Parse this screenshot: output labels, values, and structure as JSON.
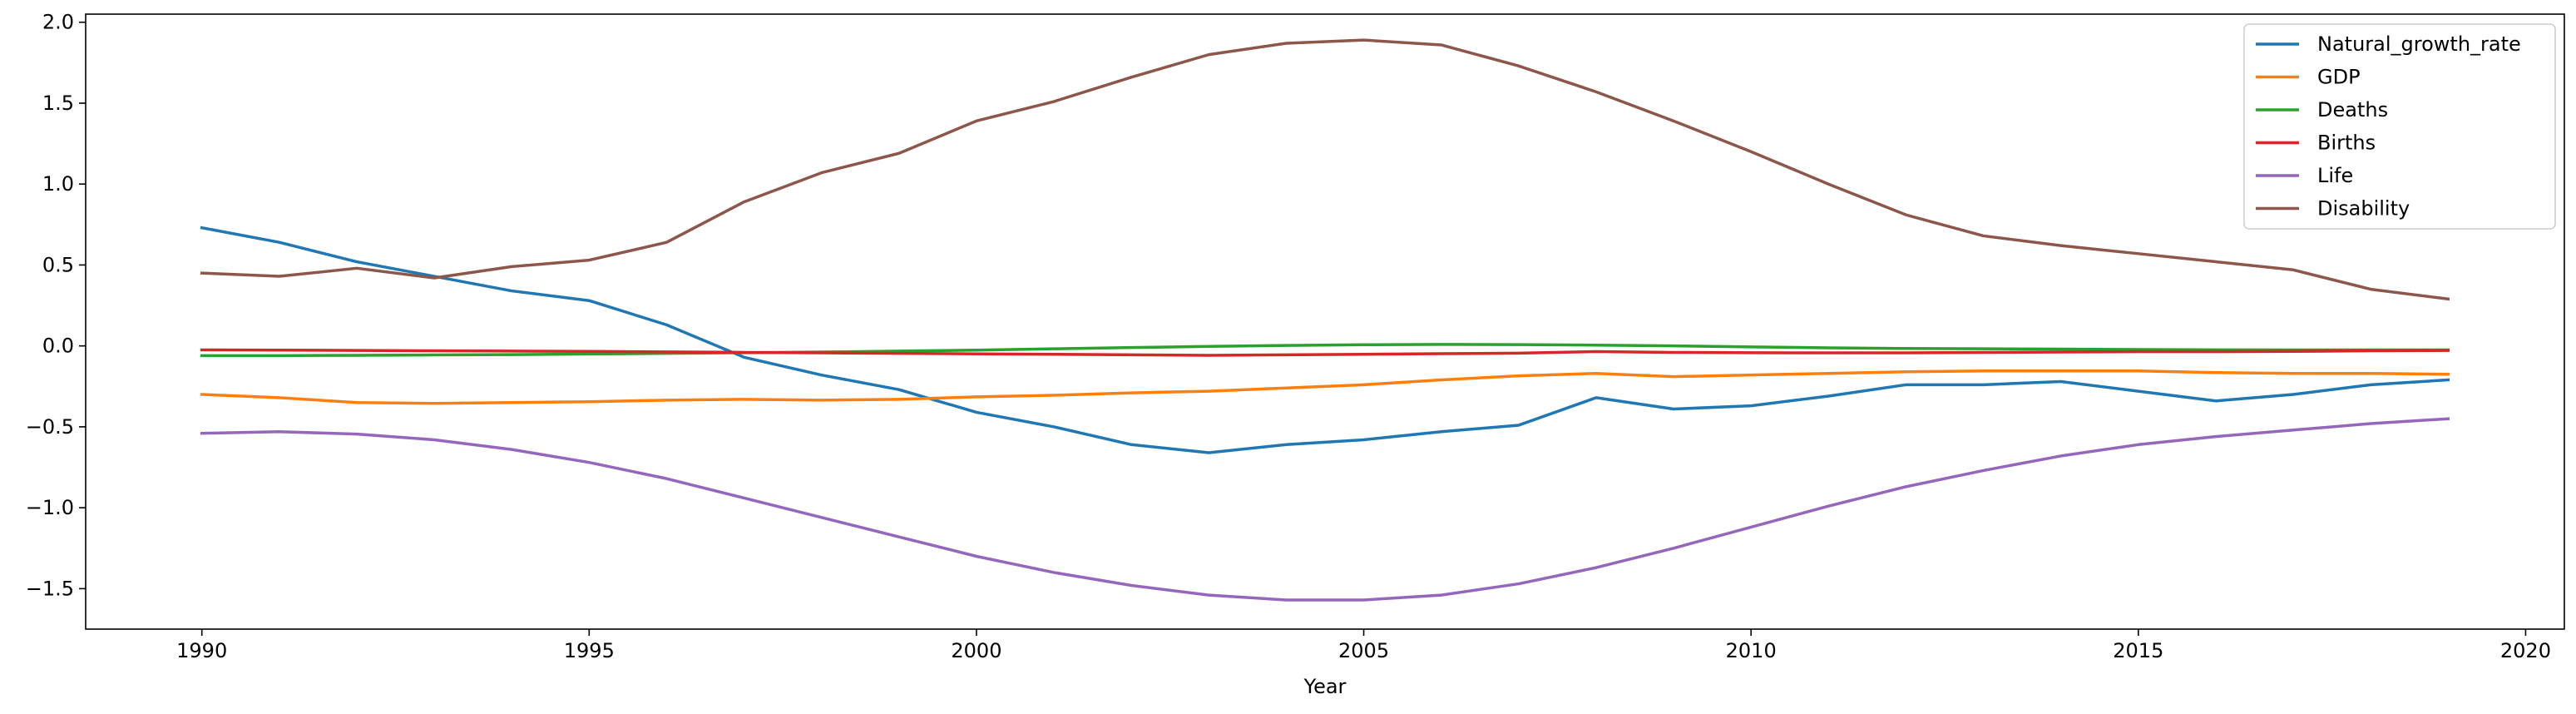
{
  "chart_data": {
    "type": "line",
    "xlabel": "Year",
    "ylabel": "",
    "xlim": [
      1988.5,
      2020.5
    ],
    "ylim": [
      -1.75,
      2.05
    ],
    "xticks": [
      1990,
      1995,
      2000,
      2005,
      2010,
      2015,
      2020
    ],
    "yticks": [
      -1.5,
      -1.0,
      -0.5,
      0.0,
      0.5,
      1.0,
      1.5,
      2.0
    ],
    "ytick_labels": [
      "−1.5",
      "−1.0",
      "−0.5",
      "0.0",
      "0.5",
      "1.0",
      "1.5",
      "2.0"
    ],
    "grid": false,
    "legend_position": "top-right",
    "x": [
      1990,
      1991,
      1992,
      1993,
      1994,
      1995,
      1996,
      1997,
      1998,
      1999,
      2000,
      2001,
      2002,
      2003,
      2004,
      2005,
      2006,
      2007,
      2008,
      2009,
      2010,
      2011,
      2012,
      2013,
      2014,
      2015,
      2016,
      2017,
      2018,
      2019
    ],
    "series": [
      {
        "name": "Natural_growth_rate",
        "color": "#1f77b4",
        "values": [
          0.73,
          0.64,
          0.52,
          0.43,
          0.34,
          0.28,
          0.13,
          -0.07,
          -0.18,
          -0.27,
          -0.41,
          -0.5,
          -0.61,
          -0.66,
          -0.61,
          -0.58,
          -0.53,
          -0.49,
          -0.32,
          -0.39,
          -0.37,
          -0.31,
          -0.24,
          -0.24,
          -0.22,
          -0.28,
          -0.34,
          -0.3,
          -0.24,
          -0.21
        ]
      },
      {
        "name": "GDP",
        "color": "#ff7f0e",
        "values": [
          -0.3,
          -0.32,
          -0.35,
          -0.355,
          -0.35,
          -0.345,
          -0.335,
          -0.33,
          -0.335,
          -0.33,
          -0.315,
          -0.305,
          -0.29,
          -0.28,
          -0.26,
          -0.24,
          -0.21,
          -0.185,
          -0.17,
          -0.19,
          -0.18,
          -0.17,
          -0.16,
          -0.155,
          -0.155,
          -0.155,
          -0.165,
          -0.17,
          -0.17,
          -0.175
        ]
      },
      {
        "name": "Deaths",
        "color": "#2ca02c",
        "values": [
          -0.06,
          -0.06,
          -0.058,
          -0.056,
          -0.054,
          -0.05,
          -0.046,
          -0.042,
          -0.038,
          -0.032,
          -0.026,
          -0.018,
          -0.01,
          -0.003,
          0.003,
          0.007,
          0.009,
          0.008,
          0.005,
          0.0,
          -0.006,
          -0.012,
          -0.016,
          -0.018,
          -0.02,
          -0.022,
          -0.024,
          -0.025,
          -0.025,
          -0.025
        ]
      },
      {
        "name": "Births",
        "color": "#d62728",
        "values": [
          -0.025,
          -0.026,
          -0.028,
          -0.03,
          -0.032,
          -0.034,
          -0.037,
          -0.04,
          -0.043,
          -0.046,
          -0.049,
          -0.052,
          -0.055,
          -0.058,
          -0.055,
          -0.052,
          -0.048,
          -0.045,
          -0.035,
          -0.04,
          -0.042,
          -0.043,
          -0.043,
          -0.04,
          -0.038,
          -0.036,
          -0.036,
          -0.034,
          -0.03,
          -0.028
        ]
      },
      {
        "name": "Life",
        "color": "#9467bd",
        "values": [
          -0.54,
          -0.53,
          -0.545,
          -0.58,
          -0.64,
          -0.72,
          -0.82,
          -0.94,
          -1.06,
          -1.18,
          -1.3,
          -1.4,
          -1.48,
          -1.54,
          -1.57,
          -1.57,
          -1.54,
          -1.47,
          -1.37,
          -1.25,
          -1.12,
          -0.99,
          -0.87,
          -0.77,
          -0.68,
          -0.61,
          -0.56,
          -0.52,
          -0.48,
          -0.45
        ]
      },
      {
        "name": "Disability",
        "color": "#8c564b",
        "values": [
          0.45,
          0.43,
          0.48,
          0.42,
          0.49,
          0.53,
          0.64,
          0.89,
          1.07,
          1.19,
          1.39,
          1.51,
          1.66,
          1.8,
          1.87,
          1.89,
          1.86,
          1.73,
          1.57,
          1.39,
          1.2,
          1.0,
          0.81,
          0.68,
          0.62,
          0.57,
          0.52,
          0.47,
          0.35,
          0.29
        ]
      }
    ]
  }
}
